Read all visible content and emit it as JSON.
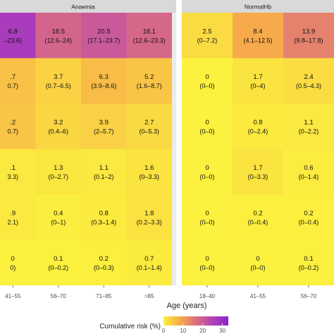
{
  "chart_data": {
    "type": "heatmap",
    "title": "",
    "xlabel": "Age (years)",
    "ylabel": "",
    "legend": {
      "title": "Cumulative risk (%)",
      "ticks": [
        "0",
        "10",
        "20",
        "30"
      ],
      "range": [
        0,
        33
      ],
      "colors": [
        "#fcf13e",
        "#f7ab4a",
        "#dd6f7e",
        "#b344b8",
        "#8a25cc"
      ],
      "placement": "bottom"
    },
    "panels": [
      {
        "name": "Anaemia",
        "columns": [
          "41–55",
          "56–70",
          "71–85",
          ">85"
        ],
        "cells": [
          [
            {
              "value": 26.8,
              "label": "6.8",
              "ci": "–23.6)"
            },
            {
              "value": 18.5,
              "label": "18.5",
              "ci": "(12.6–24)"
            },
            {
              "value": 20.5,
              "label": "20.5",
              "ci": "(17.1–23.7)"
            },
            {
              "value": 18.1,
              "label": "18.1",
              "ci": "(12.6–23.3)"
            }
          ],
          [
            {
              "value": 5.7,
              "label": ".7",
              "ci": "0.7)"
            },
            {
              "value": 3.7,
              "label": "3.7",
              "ci": "(0.7–6.5)"
            },
            {
              "value": 6.3,
              "label": "6.3",
              "ci": "(3.9–8.6)"
            },
            {
              "value": 5.2,
              "label": "5.2",
              "ci": "(1.6–8.7)"
            }
          ],
          [
            {
              "value": 5.2,
              "label": ".2",
              "ci": "0.7)"
            },
            {
              "value": 3.2,
              "label": "3.2",
              "ci": "(0.4–6)"
            },
            {
              "value": 3.9,
              "label": "3.9",
              "ci": "(2–5.7)"
            },
            {
              "value": 2.7,
              "label": "2.7",
              "ci": "(0–5.3)"
            }
          ],
          [
            {
              "value": 1.1,
              "label": ".1",
              "ci": "3.3)"
            },
            {
              "value": 1.3,
              "label": "1.3",
              "ci": "(0–2.7)"
            },
            {
              "value": 1.1,
              "label": "1.1",
              "ci": "(0.1–2)"
            },
            {
              "value": 1.6,
              "label": "1.6",
              "ci": "(0–3.3)"
            }
          ],
          [
            {
              "value": 0.9,
              "label": ".9",
              "ci": "2.1)"
            },
            {
              "value": 0.4,
              "label": "0.4",
              "ci": "(0–1)"
            },
            {
              "value": 0.8,
              "label": "0.8",
              "ci": "(0.3–1.4)"
            },
            {
              "value": 1.8,
              "label": "1.8",
              "ci": "(0.2–3.3)"
            }
          ],
          [
            {
              "value": 0,
              "label": "0",
              "ci": "0)"
            },
            {
              "value": 0.1,
              "label": "0.1",
              "ci": "(0–0.2)"
            },
            {
              "value": 0.2,
              "label": "0.2",
              "ci": "(0–0.3)"
            },
            {
              "value": 0.7,
              "label": "0.7",
              "ci": "(0.1–1.4)"
            }
          ]
        ]
      },
      {
        "name": "NormalHb",
        "columns": [
          "18–40",
          "41–55",
          "56–70"
        ],
        "cells": [
          [
            {
              "value": 2.5,
              "label": "2.5",
              "ci": "(0–7.2)"
            },
            {
              "value": 8.4,
              "label": "8.4",
              "ci": "(4.1–12.5)"
            },
            {
              "value": 13.9,
              "label": "13.9",
              "ci": "(9.8–17.8)"
            }
          ],
          [
            {
              "value": 0,
              "label": "0",
              "ci": "(0–0)"
            },
            {
              "value": 1.7,
              "label": "1.7",
              "ci": "(0–4)"
            },
            {
              "value": 2.4,
              "label": "2.4",
              "ci": "(0.5–4.3)"
            }
          ],
          [
            {
              "value": 0,
              "label": "0",
              "ci": "(0–0)"
            },
            {
              "value": 0.8,
              "label": "0.8",
              "ci": "(0–2.4)"
            },
            {
              "value": 1.1,
              "label": "1.1",
              "ci": "(0–2.2)"
            }
          ],
          [
            {
              "value": 0,
              "label": "0",
              "ci": "(0–0)"
            },
            {
              "value": 1.7,
              "label": "1.7",
              "ci": "(0–3.3)"
            },
            {
              "value": 0.6,
              "label": "0.6",
              "ci": "(0–1.4)"
            }
          ],
          [
            {
              "value": 0,
              "label": "0",
              "ci": "(0–0)"
            },
            {
              "value": 0.2,
              "label": "0.2",
              "ci": "(0–0.4)"
            },
            {
              "value": 0.2,
              "label": "0.2",
              "ci": "(0–0.4)"
            }
          ],
          [
            {
              "value": 0,
              "label": "0",
              "ci": "(0–0)"
            },
            {
              "value": 0,
              "label": "0",
              "ci": "(0–0)"
            },
            {
              "value": 0.1,
              "label": "0.1",
              "ci": "(0–0.2)"
            }
          ]
        ]
      }
    ]
  }
}
